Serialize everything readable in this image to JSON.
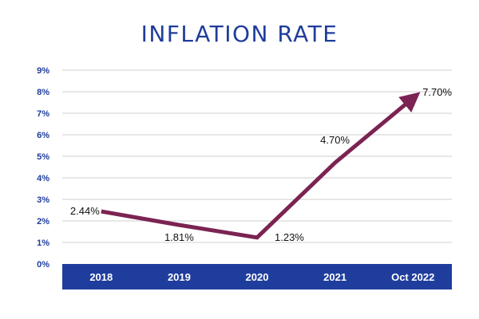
{
  "chart_data": {
    "type": "line",
    "title": "INFLATION RATE",
    "xlabel": "",
    "ylabel": "",
    "categories": [
      "2018",
      "2019",
      "2020",
      "2021",
      "Oct 2022"
    ],
    "series": [
      {
        "name": "Inflation rate",
        "values": [
          2.44,
          1.81,
          1.23,
          4.7,
          7.7
        ]
      }
    ],
    "data_labels": [
      "2.44%",
      "1.81%",
      "1.23%",
      "4.70%",
      "7.70%"
    ],
    "ylim": [
      0,
      9
    ],
    "yticks": [
      0,
      1,
      2,
      3,
      4,
      5,
      6,
      7,
      8,
      9
    ],
    "ytick_labels": [
      "0%",
      "1%",
      "2%",
      "3%",
      "4%",
      "5%",
      "6%",
      "7%",
      "8%",
      "9%"
    ],
    "grid": true,
    "line_style": "arrow"
  },
  "colors": {
    "title": "#1f3d9c",
    "axis_band": "#1f3d9c",
    "line": "#7b2352",
    "grid": "#cfcfcf",
    "label": "#111111"
  }
}
